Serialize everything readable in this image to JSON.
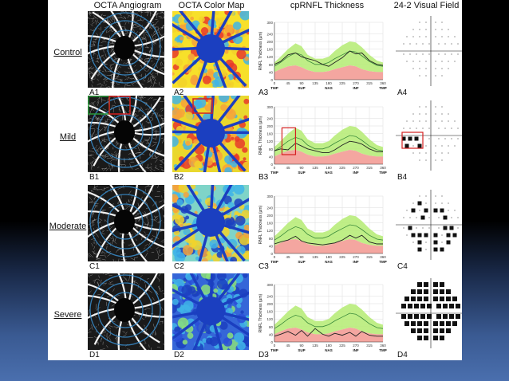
{
  "headers": {
    "angiogram": "OCTA Angiogram",
    "colormap": "OCTA Color Map",
    "rnfl": "cpRNFL Thickness",
    "vf": "24-2 Visual Field"
  },
  "rows": [
    {
      "key": "control",
      "label": "Control",
      "panels": [
        "A1",
        "A2",
        "A3",
        "A4"
      ],
      "severity": 0
    },
    {
      "key": "mild",
      "label": "Mild",
      "panels": [
        "B1",
        "B2",
        "B3",
        "B4"
      ],
      "severity": 1
    },
    {
      "key": "moderate",
      "label": "Moderate",
      "panels": [
        "C1",
        "C2",
        "C3",
        "C4"
      ],
      "severity": 2
    },
    {
      "key": "severe",
      "label": "Severe",
      "panels": [
        "D1",
        "D2",
        "D3",
        "D4"
      ],
      "severity": 3
    }
  ],
  "chart_data": [
    {
      "type": "line",
      "panel": "A3",
      "ylabel": "RNFL Thickness (µm)",
      "yticks": [
        0,
        40,
        80,
        120,
        160,
        200,
        240,
        300
      ],
      "xticks": [
        0,
        45,
        90,
        135,
        180,
        225,
        270,
        315,
        360
      ],
      "xlabels": [
        "TMP",
        "SUP",
        "NAS",
        "INF",
        "TMP"
      ],
      "ylim": [
        0,
        300
      ],
      "x": [
        0,
        20,
        45,
        70,
        90,
        110,
        135,
        160,
        180,
        200,
        225,
        250,
        270,
        290,
        315,
        340,
        360
      ],
      "normal_upper": [
        90,
        120,
        160,
        190,
        175,
        130,
        110,
        110,
        120,
        150,
        180,
        200,
        195,
        170,
        130,
        100,
        90
      ],
      "normal_mean": [
        70,
        90,
        120,
        140,
        130,
        100,
        80,
        80,
        90,
        110,
        130,
        150,
        145,
        125,
        95,
        75,
        70
      ],
      "normal_lower": [
        40,
        55,
        70,
        75,
        65,
        50,
        40,
        40,
        45,
        55,
        65,
        75,
        70,
        55,
        45,
        40,
        40
      ],
      "patient": [
        80,
        95,
        130,
        140,
        120,
        110,
        100,
        80,
        70,
        90,
        115,
        150,
        135,
        140,
        100,
        80,
        75
      ]
    },
    {
      "type": "line",
      "panel": "B3",
      "ylabel": "RNFL Thickness (µm)",
      "yticks": [
        0,
        40,
        80,
        120,
        160,
        200,
        240,
        300
      ],
      "xticks": [
        0,
        45,
        90,
        135,
        180,
        225,
        270,
        315,
        360
      ],
      "xlabels": [
        "TMP",
        "SUP",
        "NAS",
        "INF",
        "TMP"
      ],
      "ylim": [
        0,
        300
      ],
      "x": [
        0,
        20,
        45,
        70,
        90,
        110,
        135,
        160,
        180,
        200,
        225,
        250,
        270,
        290,
        315,
        340,
        360
      ],
      "normal_upper": [
        90,
        120,
        160,
        190,
        175,
        130,
        110,
        110,
        120,
        150,
        180,
        200,
        195,
        170,
        130,
        100,
        90
      ],
      "normal_mean": [
        70,
        90,
        120,
        140,
        130,
        100,
        80,
        80,
        90,
        110,
        130,
        150,
        145,
        125,
        95,
        75,
        70
      ],
      "normal_lower": [
        40,
        55,
        70,
        75,
        65,
        50,
        40,
        40,
        45,
        55,
        65,
        75,
        70,
        55,
        45,
        40,
        40
      ],
      "patient": [
        70,
        80,
        75,
        110,
        95,
        80,
        70,
        60,
        60,
        75,
        100,
        120,
        115,
        105,
        80,
        65,
        65
      ]
    },
    {
      "type": "line",
      "panel": "C3",
      "ylabel": "RNFL Thickness (µm)",
      "yticks": [
        0,
        40,
        80,
        120,
        160,
        200,
        240,
        300
      ],
      "xticks": [
        0,
        45,
        90,
        135,
        180,
        225,
        270,
        315,
        360
      ],
      "xlabels": [
        "TMP",
        "SUP",
        "NAS",
        "INF",
        "TMP"
      ],
      "ylim": [
        0,
        300
      ],
      "x": [
        0,
        20,
        45,
        70,
        90,
        110,
        135,
        160,
        180,
        200,
        225,
        250,
        270,
        290,
        315,
        340,
        360
      ],
      "normal_upper": [
        90,
        120,
        160,
        190,
        175,
        130,
        110,
        110,
        120,
        150,
        180,
        200,
        195,
        170,
        130,
        100,
        90
      ],
      "normal_mean": [
        70,
        90,
        120,
        140,
        130,
        100,
        80,
        80,
        90,
        110,
        130,
        150,
        145,
        125,
        95,
        75,
        70
      ],
      "normal_lower": [
        40,
        55,
        70,
        75,
        65,
        50,
        40,
        40,
        45,
        55,
        65,
        75,
        70,
        55,
        45,
        40,
        40
      ],
      "patient": [
        50,
        60,
        70,
        90,
        65,
        55,
        50,
        45,
        50,
        55,
        70,
        95,
        80,
        95,
        60,
        50,
        50
      ]
    },
    {
      "type": "line",
      "panel": "D3",
      "ylabel": "RNFL Thickness (µm)",
      "yticks": [
        0,
        40,
        80,
        120,
        160,
        200,
        240,
        300
      ],
      "xticks": [
        0,
        45,
        90,
        135,
        180,
        225,
        270,
        315,
        360
      ],
      "xlabels": [
        "TMP",
        "SUP",
        "NAS",
        "INF",
        "TMP"
      ],
      "ylim": [
        0,
        300
      ],
      "x": [
        0,
        20,
        45,
        70,
        90,
        110,
        135,
        160,
        180,
        200,
        225,
        250,
        270,
        290,
        315,
        340,
        360
      ],
      "normal_upper": [
        90,
        120,
        160,
        190,
        175,
        130,
        110,
        110,
        120,
        150,
        180,
        200,
        195,
        170,
        130,
        100,
        90
      ],
      "normal_mean": [
        70,
        90,
        120,
        140,
        130,
        100,
        80,
        80,
        90,
        110,
        130,
        150,
        145,
        125,
        95,
        75,
        70
      ],
      "normal_lower": [
        40,
        55,
        70,
        75,
        65,
        50,
        40,
        40,
        45,
        55,
        65,
        75,
        70,
        55,
        45,
        40,
        40
      ],
      "patient": [
        30,
        40,
        55,
        35,
        60,
        30,
        70,
        40,
        30,
        45,
        35,
        50,
        30,
        55,
        35,
        30,
        30
      ]
    }
  ],
  "colors": {
    "normal_band": "#b8ec7a",
    "below_band": "#f4a6a0",
    "patient_line": "#222222",
    "mean_line": "#3a8a3a",
    "highlight_red": "#d42020",
    "highlight_green": "#2a9a3a",
    "ring_blue": "#3a8fd0",
    "disc_blue": "#1b3fc0"
  }
}
